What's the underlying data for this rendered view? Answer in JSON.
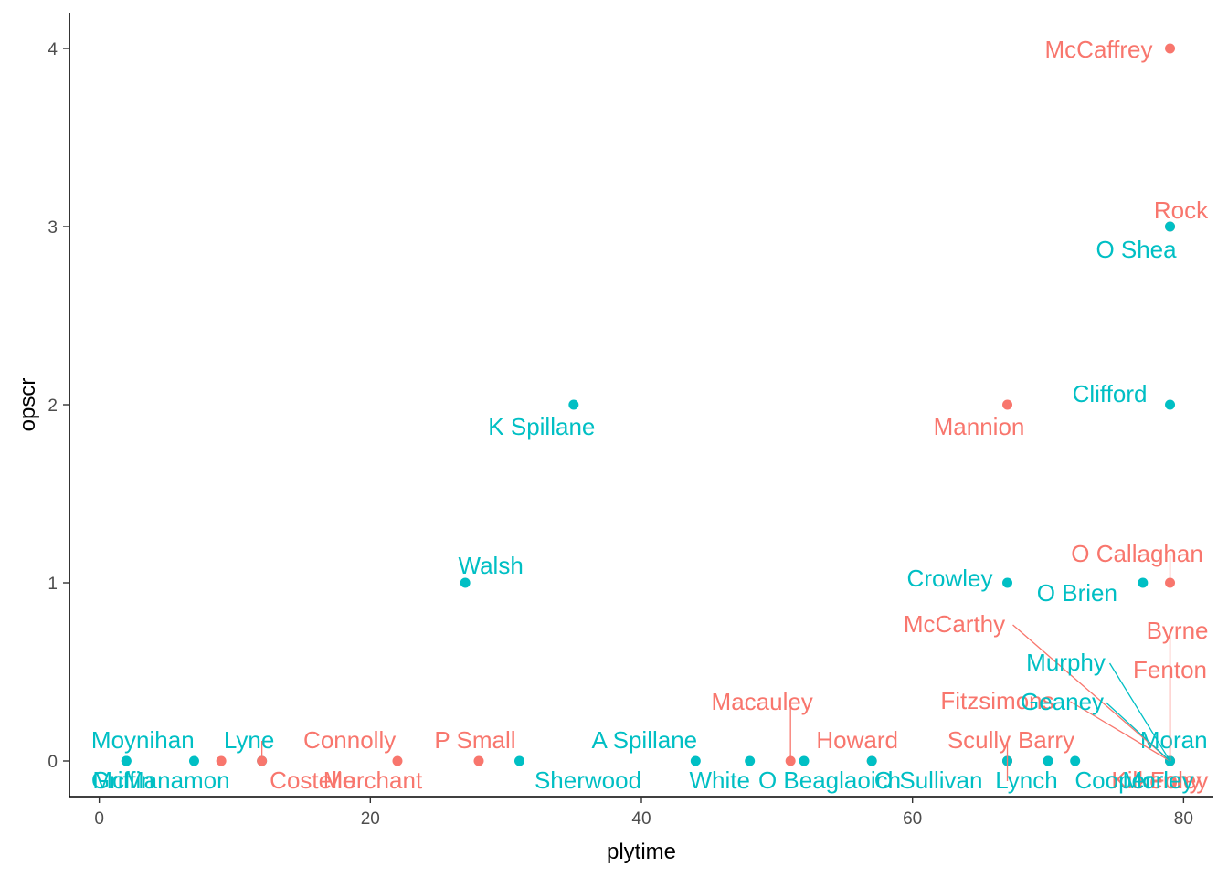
{
  "chart_data": {
    "type": "scatter",
    "xlabel": "plytime",
    "ylabel": "opscr",
    "xlim": [
      -2.2,
      82.2
    ],
    "ylim": [
      -0.2,
      4.2
    ],
    "x_ticks": [
      0,
      20,
      40,
      60,
      80
    ],
    "y_ticks": [
      0,
      1,
      2,
      3,
      4
    ],
    "grid": false,
    "legend": "none",
    "colors": {
      "group_a": "#F8766D",
      "group_b": "#00BFC4"
    },
    "points": [
      {
        "label": "McCaffrey",
        "x": 79,
        "y": 4,
        "group": "group_a"
      },
      {
        "label": "Rock",
        "x": 79,
        "y": 3,
        "group": "group_a"
      },
      {
        "label": "O Shea",
        "x": 79,
        "y": 3,
        "group": "group_b"
      },
      {
        "label": "K Spillane",
        "x": 35,
        "y": 2,
        "group": "group_b"
      },
      {
        "label": "Mannion",
        "x": 67,
        "y": 2,
        "group": "group_a"
      },
      {
        "label": "Clifford",
        "x": 79,
        "y": 2,
        "group": "group_b"
      },
      {
        "label": "Walsh",
        "x": 27,
        "y": 1,
        "group": "group_b"
      },
      {
        "label": "Crowley",
        "x": 67,
        "y": 1,
        "group": "group_b"
      },
      {
        "label": "O Brien",
        "x": 77,
        "y": 1,
        "group": "group_b"
      },
      {
        "label": "O Callaghan",
        "x": 79,
        "y": 1,
        "group": "group_a"
      },
      {
        "label": "Moynihan",
        "x": 2,
        "y": 0,
        "group": "group_b"
      },
      {
        "label": "Griffin",
        "x": 2,
        "y": 0,
        "group": "group_b"
      },
      {
        "label": "McManamon",
        "x": 7,
        "y": 0,
        "group": "group_b"
      },
      {
        "label": "Costello",
        "x": 9,
        "y": 0,
        "group": "group_a"
      },
      {
        "label": "Lyne",
        "x": 12,
        "y": 0,
        "group": "group_b"
      },
      {
        "label": "Connolly",
        "x": 12,
        "y": 0,
        "group": "group_a"
      },
      {
        "label": "Merchant",
        "x": 22,
        "y": 0,
        "group": "group_a"
      },
      {
        "label": "P Small",
        "x": 28,
        "y": 0,
        "group": "group_a"
      },
      {
        "label": "Sherwood",
        "x": 31,
        "y": 0,
        "group": "group_b"
      },
      {
        "label": "A Spillane",
        "x": 44,
        "y": 0,
        "group": "group_b"
      },
      {
        "label": "White",
        "x": 48,
        "y": 0,
        "group": "group_b"
      },
      {
        "label": "Macauley",
        "x": 51,
        "y": 0,
        "group": "group_a"
      },
      {
        "label": "O Beaglaoich",
        "x": 52,
        "y": 0,
        "group": "group_b"
      },
      {
        "label": "Howard",
        "x": 57,
        "y": 0,
        "group": "group_a"
      },
      {
        "label": "O Sullivan",
        "x": 57,
        "y": 0,
        "group": "group_b"
      },
      {
        "label": "Scully",
        "x": 67,
        "y": 0,
        "group": "group_a"
      },
      {
        "label": "Kilkenny",
        "x": 67,
        "y": 0,
        "group": "group_a"
      },
      {
        "label": "Lynch",
        "x": 67,
        "y": 0,
        "group": "group_b"
      },
      {
        "label": "Barry",
        "x": 70,
        "y": 0,
        "group": "group_a"
      },
      {
        "label": "Cooper",
        "x": 70,
        "y": 0,
        "group": "group_b"
      },
      {
        "label": "Moran",
        "x": 72,
        "y": 0,
        "group": "group_b"
      },
      {
        "label": "McCarthy",
        "x": 79,
        "y": 0,
        "group": "group_a"
      },
      {
        "label": "Byrne",
        "x": 79,
        "y": 0,
        "group": "group_a"
      },
      {
        "label": "Fenton",
        "x": 79,
        "y": 0,
        "group": "group_a"
      },
      {
        "label": "Fitzsimons",
        "x": 79,
        "y": 0,
        "group": "group_a"
      },
      {
        "label": "Murphy",
        "x": 79,
        "y": 0,
        "group": "group_b"
      },
      {
        "label": "Geaney",
        "x": 79,
        "y": 0,
        "group": "group_b"
      },
      {
        "label": "Foley",
        "x": 79,
        "y": 0,
        "group": "group_a"
      },
      {
        "label": "Morley",
        "x": 79,
        "y": 0,
        "group": "group_b"
      }
    ]
  }
}
